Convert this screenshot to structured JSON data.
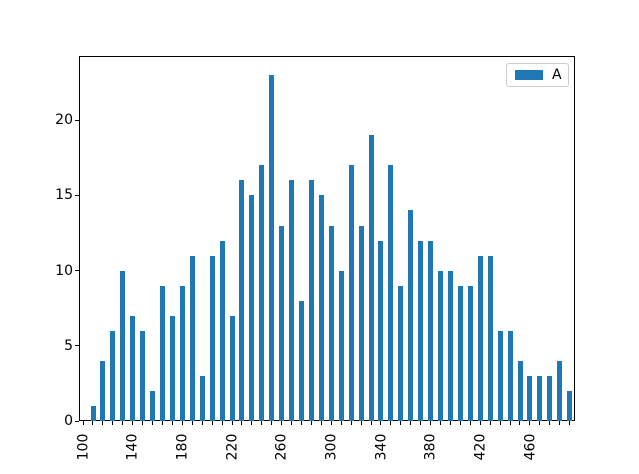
{
  "chart_data": {
    "type": "bar",
    "title": "",
    "xlabel": "",
    "ylabel": "",
    "grid": false,
    "legend_position": "upper right",
    "series": [
      {
        "name": "A",
        "color": "#1f77b4",
        "x": [
          108,
          116,
          124,
          132,
          140,
          148,
          156,
          164,
          172,
          180,
          188,
          196,
          204,
          212,
          220,
          228,
          236,
          244,
          252,
          260,
          268,
          276,
          284,
          292,
          300,
          308,
          316,
          324,
          332,
          340,
          348,
          356,
          364,
          372,
          380,
          388,
          396,
          404,
          412,
          420,
          428,
          436,
          444,
          452,
          460,
          468,
          476,
          484,
          492
        ],
        "values": [
          1,
          4,
          6,
          10,
          7,
          6,
          2,
          9,
          7,
          9,
          11,
          3,
          11,
          12,
          7,
          16,
          15,
          17,
          23,
          13,
          16,
          8,
          16,
          15,
          13,
          10,
          17,
          13,
          19,
          12,
          17,
          9,
          14,
          12,
          12,
          10,
          10,
          9,
          9,
          11,
          11,
          6,
          6,
          4,
          3,
          3,
          3,
          4,
          2
        ]
      }
    ],
    "bar_width_x_units": 4,
    "x_ticks": [
      100,
      108,
      116,
      124,
      132,
      140,
      148,
      156,
      164,
      172,
      180,
      188,
      196,
      204,
      212,
      220,
      228,
      236,
      244,
      252,
      260,
      268,
      276,
      284,
      292,
      300,
      308,
      316,
      324,
      332,
      340,
      348,
      356,
      364,
      372,
      380,
      388,
      396,
      404,
      412,
      420,
      428,
      436,
      444,
      452,
      460,
      468,
      476,
      484,
      492
    ],
    "x_labeled_ticks": [
      {
        "value": 100,
        "label": "100"
      },
      {
        "value": 140,
        "label": "140"
      },
      {
        "value": 180,
        "label": "180"
      },
      {
        "value": 220,
        "label": "220"
      },
      {
        "value": 260,
        "label": "260"
      },
      {
        "value": 300,
        "label": "300"
      },
      {
        "value": 340,
        "label": "340"
      },
      {
        "value": 380,
        "label": "380"
      },
      {
        "value": 420,
        "label": "420"
      },
      {
        "value": 460,
        "label": "460"
      }
    ],
    "x_label_rotation_deg": 90,
    "y_ticks": [
      {
        "value": 0,
        "label": "0"
      },
      {
        "value": 5,
        "label": "5"
      },
      {
        "value": 10,
        "label": "10"
      },
      {
        "value": 15,
        "label": "15"
      },
      {
        "value": 20,
        "label": "20"
      }
    ],
    "xlim": [
      97.58,
      496.36
    ],
    "ylim": [
      0,
      24.2
    ]
  },
  "legend": {
    "label": "A",
    "swatch_color": "#1f77b4"
  },
  "colors": {
    "bar": "#1f77b4",
    "axis": "#000000",
    "legend_border": "#cccccc",
    "background": "#ffffff"
  }
}
